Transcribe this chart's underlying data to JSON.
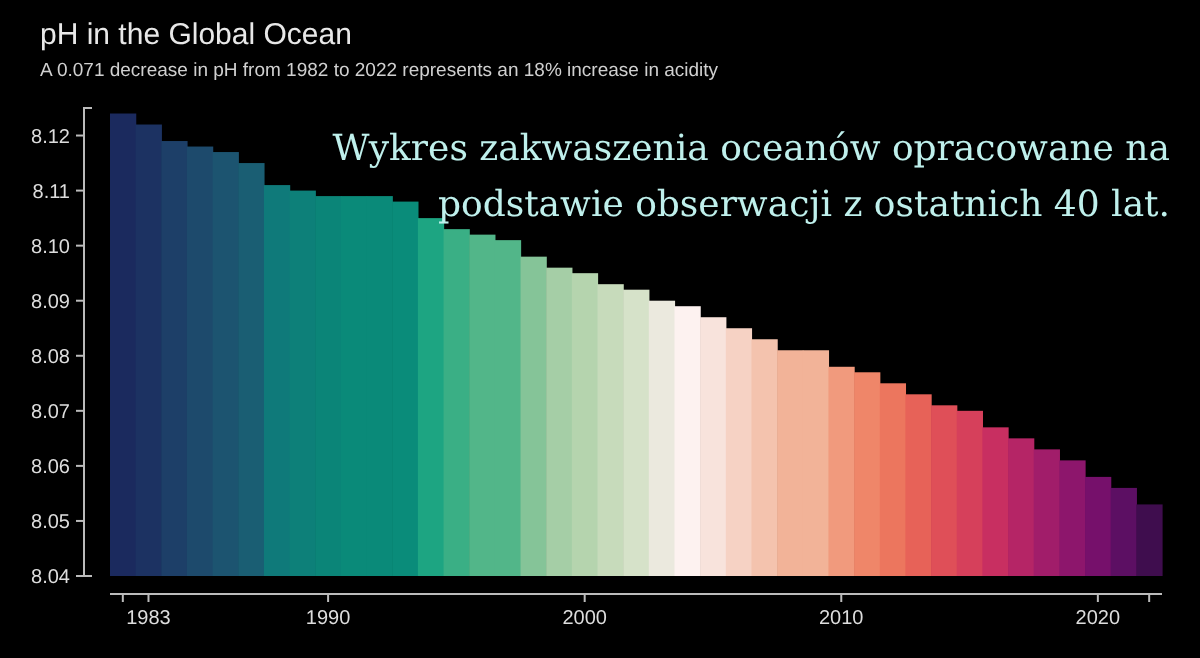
{
  "chart_data": {
    "type": "bar",
    "title": "pH in the Global Ocean",
    "subtitle": "A 0.071 decrease in pH from 1982 to 2022 represents an 18% increase in acidity",
    "annotations": [
      "Wykres zakwaszenia oceanów opracowane na\npodstawie obserwacji z ostatnich 40 lat."
    ],
    "x": [
      1982,
      1983,
      1984,
      1985,
      1986,
      1987,
      1988,
      1989,
      1990,
      1991,
      1992,
      1993,
      1994,
      1995,
      1996,
      1997,
      1998,
      1999,
      2000,
      2001,
      2002,
      2003,
      2004,
      2005,
      2006,
      2007,
      2008,
      2009,
      2010,
      2011,
      2012,
      2013,
      2014,
      2015,
      2016,
      2017,
      2018,
      2019,
      2020,
      2021,
      2022
    ],
    "values": [
      8.124,
      8.122,
      8.119,
      8.118,
      8.117,
      8.115,
      8.111,
      8.11,
      8.109,
      8.109,
      8.109,
      8.108,
      8.105,
      8.103,
      8.102,
      8.101,
      8.098,
      8.096,
      8.095,
      8.093,
      8.092,
      8.09,
      8.089,
      8.087,
      8.085,
      8.083,
      8.081,
      8.081,
      8.078,
      8.077,
      8.075,
      8.073,
      8.071,
      8.07,
      8.067,
      8.065,
      8.063,
      8.061,
      8.058,
      8.056,
      8.053
    ],
    "colors": [
      "#1b2a5e",
      "#1c3262",
      "#1d3f68",
      "#1d4a6c",
      "#1c5470",
      "#1a5e73",
      "#0f7a7a",
      "#0d8079",
      "#0b8578",
      "#0a8a79",
      "#0a8a79",
      "#0a8c7a",
      "#1da582",
      "#3aaf85",
      "#52b689",
      "#52b689",
      "#85c498",
      "#a5cea6",
      "#b5d4ae",
      "#c7dbbb",
      "#d6e2c9",
      "#ebe9de",
      "#fdf2f0",
      "#f8e3dc",
      "#f6d2c4",
      "#f4c3ae",
      "#f2b398",
      "#f2b398",
      "#f19a7d",
      "#ef8669",
      "#ec765e",
      "#e76258",
      "#df4f58",
      "#d6405b",
      "#c82f61",
      "#b52566",
      "#a11d6a",
      "#8d166c",
      "#76106b",
      "#5c0f63",
      "#3f0d4e"
    ],
    "xlim": [
      1981.5,
      2022.5
    ],
    "xticks": [
      {
        "value": 1982,
        "label": null
      },
      1983,
      1990,
      2000,
      2010,
      2020,
      {
        "value": 2022,
        "label": null
      }
    ],
    "ylim": [
      8.04,
      8.125
    ],
    "yticks": [
      8.04,
      8.05,
      8.06,
      8.07,
      8.08,
      8.09,
      {
        "value": 8.1,
        "label": "8.10"
      },
      8.11,
      8.12
    ]
  }
}
